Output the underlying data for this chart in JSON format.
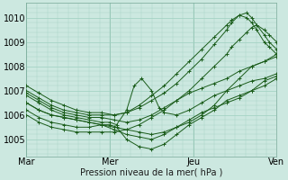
{
  "background_color": "#cce8e0",
  "plot_bg_color": "#cce8e0",
  "grid_color": "#9ecfbf",
  "line_color": "#1a5c1a",
  "marker_color": "#1a5c1a",
  "xlabel": "Pression niveau de la mer( hPa )",
  "xlim": [
    0,
    1
  ],
  "ylim": [
    1004.3,
    1010.6
  ],
  "yticks": [
    1005,
    1006,
    1007,
    1008,
    1009,
    1010
  ],
  "xtick_positions": [
    0,
    0.333,
    0.667,
    1.0
  ],
  "xtick_labels": [
    "Mar",
    "Mer",
    "Jeu",
    "Ven"
  ],
  "series": [
    {
      "x": [
        0.0,
        0.05,
        0.1,
        0.15,
        0.2,
        0.25,
        0.3,
        0.35,
        0.4,
        0.45,
        0.5,
        0.55,
        0.6,
        0.65,
        0.7,
        0.75,
        0.8,
        0.85,
        0.9,
        0.95,
        1.0
      ],
      "y": [
        1006.2,
        1005.9,
        1005.7,
        1005.6,
        1005.5,
        1005.5,
        1005.6,
        1005.4,
        1005.2,
        1005.1,
        1005.0,
        1005.2,
        1005.5,
        1005.8,
        1006.1,
        1006.3,
        1006.5,
        1006.7,
        1007.0,
        1007.4,
        1007.6
      ]
    },
    {
      "x": [
        0.0,
        0.05,
        0.1,
        0.15,
        0.2,
        0.25,
        0.3,
        0.35,
        0.4,
        0.45,
        0.5,
        0.55,
        0.6,
        0.65,
        0.7,
        0.75,
        0.8,
        0.85,
        0.9,
        0.95,
        1.0
      ],
      "y": [
        1006.5,
        1006.2,
        1006.0,
        1005.9,
        1005.8,
        1005.7,
        1005.6,
        1005.5,
        1005.4,
        1005.3,
        1005.2,
        1005.3,
        1005.5,
        1005.7,
        1006.0,
        1006.4,
        1007.0,
        1007.5,
        1008.0,
        1008.2,
        1008.4
      ]
    },
    {
      "x": [
        0.0,
        0.05,
        0.1,
        0.15,
        0.2,
        0.25,
        0.3,
        0.333,
        0.36,
        0.4,
        0.43,
        0.46,
        0.5,
        0.53,
        0.55,
        0.6,
        0.65,
        0.7,
        0.75,
        0.8,
        0.85,
        0.9,
        0.95,
        1.0
      ],
      "y": [
        1006.8,
        1006.5,
        1006.2,
        1006.0,
        1005.9,
        1005.8,
        1005.7,
        1005.7,
        1005.6,
        1006.2,
        1007.2,
        1007.5,
        1007.0,
        1006.3,
        1006.1,
        1006.0,
        1006.2,
        1006.5,
        1006.8,
        1007.0,
        1007.2,
        1007.4,
        1007.5,
        1007.7
      ]
    },
    {
      "x": [
        0.0,
        0.05,
        0.1,
        0.15,
        0.2,
        0.25,
        0.3,
        0.35,
        0.4,
        0.45,
        0.5,
        0.55,
        0.6,
        0.65,
        0.7,
        0.75,
        0.8,
        0.85,
        0.9,
        0.95,
        1.0
      ],
      "y": [
        1006.9,
        1006.6,
        1006.3,
        1006.1,
        1006.0,
        1005.9,
        1005.9,
        1005.8,
        1005.7,
        1005.8,
        1006.0,
        1006.3,
        1006.6,
        1006.9,
        1007.1,
        1007.3,
        1007.5,
        1007.8,
        1008.0,
        1008.2,
        1008.5
      ]
    },
    {
      "x": [
        0.0,
        0.05,
        0.1,
        0.15,
        0.2,
        0.25,
        0.3,
        0.333,
        0.36,
        0.4,
        0.45,
        0.5,
        0.55,
        0.6,
        0.65,
        0.7,
        0.75,
        0.8,
        0.85,
        0.9,
        0.95,
        1.0
      ],
      "y": [
        1006.5,
        1006.2,
        1006.0,
        1005.9,
        1005.8,
        1005.7,
        1005.6,
        1005.6,
        1005.5,
        1005.0,
        1004.7,
        1004.6,
        1004.8,
        1005.2,
        1005.6,
        1005.9,
        1006.2,
        1006.6,
        1006.8,
        1007.0,
        1007.2,
        1007.5
      ]
    },
    {
      "x": [
        0.0,
        0.05,
        0.1,
        0.15,
        0.2,
        0.25,
        0.3,
        0.35,
        0.4,
        0.45,
        0.5,
        0.55,
        0.6,
        0.65,
        0.7,
        0.75,
        0.8,
        0.82,
        0.85,
        0.88,
        0.9,
        0.92,
        0.95,
        0.97,
        1.0
      ],
      "y": [
        1007.2,
        1006.9,
        1006.6,
        1006.4,
        1006.2,
        1006.1,
        1006.1,
        1006.0,
        1006.1,
        1006.3,
        1006.6,
        1006.9,
        1007.3,
        1007.8,
        1008.3,
        1008.9,
        1009.5,
        1009.8,
        1010.1,
        1010.2,
        1010.0,
        1009.7,
        1009.3,
        1009.0,
        1008.7
      ]
    },
    {
      "x": [
        0.0,
        0.05,
        0.1,
        0.15,
        0.2,
        0.25,
        0.3,
        0.35,
        0.4,
        0.45,
        0.5,
        0.55,
        0.6,
        0.65,
        0.7,
        0.75,
        0.8,
        0.82,
        0.85,
        0.88,
        0.9,
        0.92,
        0.95,
        0.97,
        1.0
      ],
      "y": [
        1007.0,
        1006.7,
        1006.4,
        1006.2,
        1006.1,
        1006.0,
        1006.0,
        1006.0,
        1006.1,
        1006.4,
        1006.8,
        1007.2,
        1007.7,
        1008.2,
        1008.7,
        1009.2,
        1009.7,
        1009.9,
        1010.1,
        1010.0,
        1009.8,
        1009.5,
        1009.0,
        1008.8,
        1008.5
      ]
    },
    {
      "x": [
        0.0,
        0.05,
        0.1,
        0.15,
        0.2,
        0.25,
        0.3,
        0.35,
        0.4,
        0.45,
        0.5,
        0.55,
        0.6,
        0.65,
        0.7,
        0.75,
        0.8,
        0.82,
        0.85,
        0.88,
        0.9,
        0.92,
        0.95,
        0.97,
        1.0
      ],
      "y": [
        1006.0,
        1005.7,
        1005.5,
        1005.4,
        1005.3,
        1005.3,
        1005.3,
        1005.3,
        1005.4,
        1005.6,
        1005.9,
        1006.2,
        1006.6,
        1007.0,
        1007.5,
        1008.0,
        1008.5,
        1008.8,
        1009.1,
        1009.4,
        1009.6,
        1009.7,
        1009.5,
        1009.3,
        1009.0
      ]
    }
  ]
}
